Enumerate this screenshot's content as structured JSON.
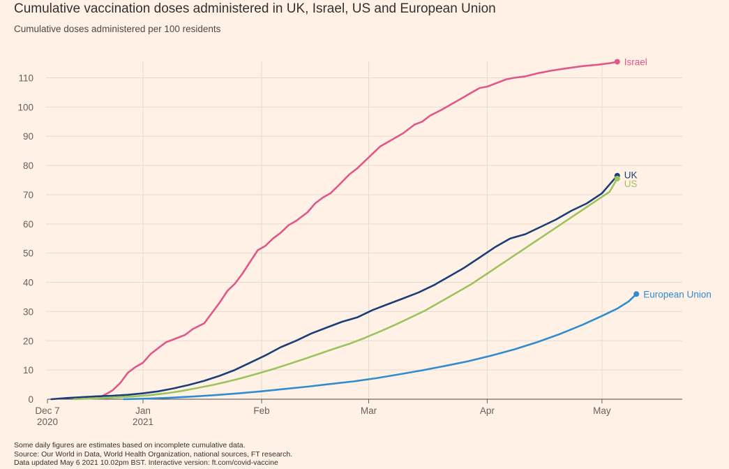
{
  "title": "Cumulative vaccination doses administered in UK, Israel, US and European Union",
  "subtitle": "Cumulative doses administered per 100 residents",
  "footer": {
    "note": "Some daily figures are estimates based on incomplete cumulative data.",
    "source": "Source: Our World in Data, World Health Organization, national sources, FT research.",
    "updated": "Data updated May 6 2021 10.02pm BST. Interactive version: ft.com/covid-vaccine"
  },
  "chart_data": {
    "type": "line",
    "title": "Cumulative vaccination doses administered in UK, Israel, US and European Union",
    "subtitle": "Cumulative doses administered per 100 residents",
    "xlabel": "",
    "ylabel": "",
    "xlim": [
      "2020-12-07",
      "2021-05-22"
    ],
    "ylim": [
      0,
      118
    ],
    "yticks": [
      0,
      10,
      20,
      30,
      40,
      50,
      60,
      70,
      80,
      90,
      100,
      110
    ],
    "xticks": [
      {
        "date": "2020-12-07",
        "label": "Dec 7",
        "label2": "2020"
      },
      {
        "date": "2021-01-01",
        "label": "Jan",
        "label2": "2021"
      },
      {
        "date": "2021-02-01",
        "label": "Feb",
        "label2": ""
      },
      {
        "date": "2021-03-01",
        "label": "Mar",
        "label2": ""
      },
      {
        "date": "2021-04-01",
        "label": "Apr",
        "label2": ""
      },
      {
        "date": "2021-05-01",
        "label": "May",
        "label2": ""
      }
    ],
    "grid": true,
    "legend": "direct labels at line ends (right)",
    "series": [
      {
        "name": "Israel",
        "color": "#e0578a",
        "points": [
          [
            "2020-12-20",
            0.2
          ],
          [
            "2020-12-22",
            1.5
          ],
          [
            "2020-12-24",
            3
          ],
          [
            "2020-12-26",
            5.5
          ],
          [
            "2020-12-28",
            9
          ],
          [
            "2020-12-30",
            11
          ],
          [
            "2021-01-01",
            12.5
          ],
          [
            "2021-01-03",
            15.5
          ],
          [
            "2021-01-05",
            17.5
          ],
          [
            "2021-01-07",
            19.5
          ],
          [
            "2021-01-10",
            21
          ],
          [
            "2021-01-12",
            22
          ],
          [
            "2021-01-14",
            24
          ],
          [
            "2021-01-17",
            26
          ],
          [
            "2021-01-19",
            29.5
          ],
          [
            "2021-01-21",
            33
          ],
          [
            "2021-01-23",
            37
          ],
          [
            "2021-01-25",
            39.5
          ],
          [
            "2021-01-27",
            43
          ],
          [
            "2021-01-29",
            47
          ],
          [
            "2021-01-31",
            51
          ],
          [
            "2021-02-02",
            52.5
          ],
          [
            "2021-02-04",
            55
          ],
          [
            "2021-02-06",
            57
          ],
          [
            "2021-02-08",
            59.5
          ],
          [
            "2021-02-10",
            61
          ],
          [
            "2021-02-13",
            64
          ],
          [
            "2021-02-15",
            67
          ],
          [
            "2021-02-17",
            69
          ],
          [
            "2021-02-19",
            70.5
          ],
          [
            "2021-02-21",
            73
          ],
          [
            "2021-02-24",
            77
          ],
          [
            "2021-02-26",
            79
          ],
          [
            "2021-02-28",
            81.5
          ],
          [
            "2021-03-02",
            84
          ],
          [
            "2021-03-04",
            86.5
          ],
          [
            "2021-03-06",
            88
          ],
          [
            "2021-03-08",
            89.5
          ],
          [
            "2021-03-10",
            91
          ],
          [
            "2021-03-13",
            94
          ],
          [
            "2021-03-15",
            95
          ],
          [
            "2021-03-17",
            97
          ],
          [
            "2021-03-20",
            99
          ],
          [
            "2021-03-22",
            100.5
          ],
          [
            "2021-03-24",
            102
          ],
          [
            "2021-03-26",
            103.5
          ],
          [
            "2021-03-28",
            105
          ],
          [
            "2021-03-30",
            106.5
          ],
          [
            "2021-04-01",
            107
          ],
          [
            "2021-04-04",
            108.5
          ],
          [
            "2021-04-06",
            109.5
          ],
          [
            "2021-04-08",
            110
          ],
          [
            "2021-04-11",
            110.5
          ],
          [
            "2021-04-14",
            111.5
          ],
          [
            "2021-04-18",
            112.5
          ],
          [
            "2021-04-22",
            113.3
          ],
          [
            "2021-04-26",
            114
          ],
          [
            "2021-04-30",
            114.5
          ],
          [
            "2021-05-03",
            115
          ],
          [
            "2021-05-05",
            115.5
          ]
        ]
      },
      {
        "name": "UK",
        "color": "#1a3f78",
        "points": [
          [
            "2020-12-08",
            0
          ],
          [
            "2020-12-12",
            0.4
          ],
          [
            "2020-12-16",
            0.7
          ],
          [
            "2020-12-20",
            1
          ],
          [
            "2020-12-24",
            1.2
          ],
          [
            "2020-12-28",
            1.5
          ],
          [
            "2021-01-01",
            2
          ],
          [
            "2021-01-05",
            2.7
          ],
          [
            "2021-01-09",
            3.7
          ],
          [
            "2021-01-13",
            4.9
          ],
          [
            "2021-01-17",
            6.3
          ],
          [
            "2021-01-21",
            8
          ],
          [
            "2021-01-25",
            10
          ],
          [
            "2021-01-29",
            12.5
          ],
          [
            "2021-02-02",
            15
          ],
          [
            "2021-02-06",
            17.8
          ],
          [
            "2021-02-10",
            20
          ],
          [
            "2021-02-14",
            22.5
          ],
          [
            "2021-02-18",
            24.5
          ],
          [
            "2021-02-22",
            26.5
          ],
          [
            "2021-02-26",
            28
          ],
          [
            "2021-03-02",
            30.5
          ],
          [
            "2021-03-06",
            32.5
          ],
          [
            "2021-03-10",
            34.5
          ],
          [
            "2021-03-14",
            36.5
          ],
          [
            "2021-03-18",
            39
          ],
          [
            "2021-03-22",
            42
          ],
          [
            "2021-03-26",
            45
          ],
          [
            "2021-03-30",
            48.5
          ],
          [
            "2021-04-03",
            52
          ],
          [
            "2021-04-07",
            55
          ],
          [
            "2021-04-11",
            56.5
          ],
          [
            "2021-04-15",
            59
          ],
          [
            "2021-04-19",
            61.5
          ],
          [
            "2021-04-23",
            64.5
          ],
          [
            "2021-04-27",
            67
          ],
          [
            "2021-05-01",
            70.5
          ],
          [
            "2021-05-03",
            73.5
          ],
          [
            "2021-05-05",
            76.5
          ]
        ]
      },
      {
        "name": "US",
        "color": "#9dc35e",
        "points": [
          [
            "2020-12-14",
            0
          ],
          [
            "2020-12-18",
            0.2
          ],
          [
            "2020-12-22",
            0.4
          ],
          [
            "2020-12-26",
            0.7
          ],
          [
            "2020-12-30",
            1
          ],
          [
            "2021-01-03",
            1.4
          ],
          [
            "2021-01-07",
            2
          ],
          [
            "2021-01-11",
            2.8
          ],
          [
            "2021-01-15",
            3.8
          ],
          [
            "2021-01-19",
            4.8
          ],
          [
            "2021-01-23",
            6
          ],
          [
            "2021-01-27",
            7.3
          ],
          [
            "2021-01-31",
            8.8
          ],
          [
            "2021-02-04",
            10.3
          ],
          [
            "2021-02-08",
            12
          ],
          [
            "2021-02-12",
            13.7
          ],
          [
            "2021-02-16",
            15.5
          ],
          [
            "2021-02-20",
            17.3
          ],
          [
            "2021-02-24",
            19
          ],
          [
            "2021-02-28",
            21
          ],
          [
            "2021-03-04",
            23.2
          ],
          [
            "2021-03-08",
            25.5
          ],
          [
            "2021-03-12",
            28
          ],
          [
            "2021-03-16",
            30.5
          ],
          [
            "2021-03-20",
            33.5
          ],
          [
            "2021-03-24",
            36.5
          ],
          [
            "2021-03-28",
            39.5
          ],
          [
            "2021-04-01",
            43
          ],
          [
            "2021-04-05",
            46.5
          ],
          [
            "2021-04-09",
            50
          ],
          [
            "2021-04-13",
            53.5
          ],
          [
            "2021-04-17",
            57
          ],
          [
            "2021-04-21",
            60.5
          ],
          [
            "2021-04-25",
            64
          ],
          [
            "2021-04-29",
            67.5
          ],
          [
            "2021-05-03",
            71
          ],
          [
            "2021-05-05",
            75.5
          ]
        ]
      },
      {
        "name": "European Union",
        "color": "#2f8cd0",
        "points": [
          [
            "2020-12-27",
            0
          ],
          [
            "2021-01-02",
            0.2
          ],
          [
            "2021-01-08",
            0.5
          ],
          [
            "2021-01-14",
            0.9
          ],
          [
            "2021-01-20",
            1.4
          ],
          [
            "2021-01-26",
            2
          ],
          [
            "2021-02-01",
            2.7
          ],
          [
            "2021-02-07",
            3.5
          ],
          [
            "2021-02-13",
            4.3
          ],
          [
            "2021-02-19",
            5.2
          ],
          [
            "2021-02-25",
            6.1
          ],
          [
            "2021-03-03",
            7.2
          ],
          [
            "2021-03-09",
            8.5
          ],
          [
            "2021-03-15",
            9.9
          ],
          [
            "2021-03-21",
            11.4
          ],
          [
            "2021-03-27",
            13
          ],
          [
            "2021-04-02",
            14.9
          ],
          [
            "2021-04-08",
            17
          ],
          [
            "2021-04-14",
            19.5
          ],
          [
            "2021-04-20",
            22.3
          ],
          [
            "2021-04-26",
            25.5
          ],
          [
            "2021-05-01",
            28.5
          ],
          [
            "2021-05-05",
            31
          ],
          [
            "2021-05-08",
            33.5
          ],
          [
            "2021-05-10",
            36
          ]
        ]
      }
    ]
  }
}
